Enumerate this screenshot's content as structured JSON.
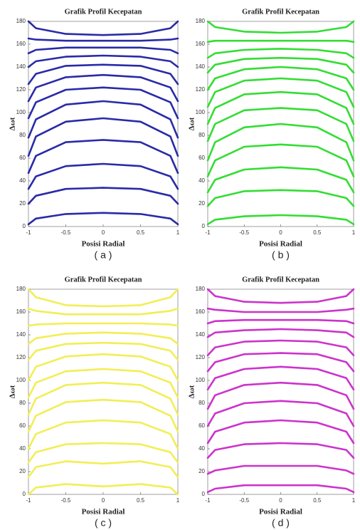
{
  "chart_data": [
    {
      "type": "line",
      "title": "Grafik Profil Kecepatan",
      "xlabel": "Posisi Radial",
      "ylabel": "Δωt",
      "caption": "( a )",
      "x": [
        -1,
        -0.9,
        -0.5,
        0,
        0.5,
        0.9,
        1
      ],
      "xlim": [
        -1,
        1
      ],
      "ylim": [
        0,
        180
      ],
      "xticks": [
        -1,
        -0.5,
        0,
        0.5,
        1
      ],
      "yticks": [
        0,
        20,
        40,
        60,
        80,
        100,
        120,
        140,
        160,
        180
      ],
      "series": [
        {
          "color": "#2a2aa8",
          "values": [
            2,
            7,
            11,
            12,
            11,
            7,
            2
          ]
        },
        {
          "color": "#2a2aa8",
          "values": [
            20,
            27,
            33,
            34,
            33,
            27,
            20
          ]
        },
        {
          "color": "#2a2aa8",
          "values": [
            33,
            44,
            53,
            55,
            53,
            44,
            33
          ]
        },
        {
          "color": "#2a2aa8",
          "values": [
            47,
            62,
            74,
            76,
            74,
            62,
            47
          ]
        },
        {
          "color": "#2a2aa8",
          "values": [
            62,
            79,
            92,
            95,
            92,
            79,
            62
          ]
        },
        {
          "color": "#2a2aa8",
          "values": [
            78,
            94,
            107,
            110,
            107,
            94,
            78
          ]
        },
        {
          "color": "#2a2aa8",
          "values": [
            95,
            109,
            120,
            122,
            120,
            109,
            95
          ]
        },
        {
          "color": "#2a2aa8",
          "values": [
            110,
            122,
            131,
            133,
            131,
            122,
            110
          ]
        },
        {
          "color": "#2a2aa8",
          "values": [
            125,
            134,
            141,
            142,
            141,
            134,
            125
          ]
        },
        {
          "color": "#2a2aa8",
          "values": [
            140,
            145,
            149,
            150,
            149,
            145,
            140
          ]
        },
        {
          "color": "#2a2aa8",
          "values": [
            152,
            155,
            157,
            157,
            157,
            155,
            152
          ]
        },
        {
          "color": "#2a2aa8",
          "values": [
            165,
            164,
            163,
            163,
            163,
            164,
            165
          ]
        },
        {
          "color": "#2a2aa8",
          "values": [
            180,
            174,
            169,
            168,
            169,
            174,
            180
          ]
        }
      ]
    },
    {
      "type": "line",
      "title": "Grafik Profil Kecepatan",
      "xlabel": "Posisi Radial",
      "ylabel": "Δωt",
      "caption": "( b )",
      "x": [
        -1,
        -0.9,
        -0.5,
        0,
        0.5,
        0.9,
        1
      ],
      "xlim": [
        -1,
        1
      ],
      "ylim": [
        0,
        180
      ],
      "xticks": [
        -1,
        -0.5,
        0,
        0.5,
        1
      ],
      "yticks": [
        0,
        20,
        40,
        60,
        80,
        100,
        120,
        140,
        160,
        180
      ],
      "series": [
        {
          "color": "#33dd33",
          "values": [
            2,
            6,
            9,
            10,
            9,
            6,
            2
          ]
        },
        {
          "color": "#33dd33",
          "values": [
            18,
            25,
            31,
            32,
            31,
            25,
            18
          ]
        },
        {
          "color": "#33dd33",
          "values": [
            30,
            41,
            50,
            52,
            50,
            41,
            30
          ]
        },
        {
          "color": "#33dd33",
          "values": [
            44,
            58,
            70,
            72,
            70,
            58,
            44
          ]
        },
        {
          "color": "#33dd33",
          "values": [
            58,
            74,
            87,
            90,
            87,
            74,
            58
          ]
        },
        {
          "color": "#33dd33",
          "values": [
            75,
            90,
            102,
            104,
            102,
            90,
            75
          ]
        },
        {
          "color": "#33dd33",
          "values": [
            90,
            104,
            116,
            118,
            116,
            104,
            90
          ]
        },
        {
          "color": "#33dd33",
          "values": [
            105,
            118,
            128,
            130,
            128,
            118,
            105
          ]
        },
        {
          "color": "#33dd33",
          "values": [
            120,
            130,
            138,
            140,
            138,
            130,
            120
          ]
        },
        {
          "color": "#33dd33",
          "values": [
            135,
            142,
            147,
            148,
            147,
            142,
            135
          ]
        },
        {
          "color": "#33dd33",
          "values": [
            148,
            152,
            155,
            156,
            155,
            152,
            148
          ]
        },
        {
          "color": "#33dd33",
          "values": [
            162,
            163,
            163,
            163,
            163,
            163,
            162
          ]
        },
        {
          "color": "#33dd33",
          "values": [
            180,
            175,
            171,
            170,
            171,
            175,
            180
          ]
        }
      ]
    },
    {
      "type": "line",
      "title": "Grafik Profil Kecepatan",
      "xlabel": "Posisi Radial",
      "ylabel": "Δωt",
      "caption": "( c )",
      "x": [
        -1,
        -0.9,
        -0.5,
        0,
        0.5,
        0.9,
        1
      ],
      "xlim": [
        -1,
        1
      ],
      "ylim": [
        0,
        180
      ],
      "xticks": [
        -1,
        -0.5,
        0,
        0.5,
        1
      ],
      "yticks": [
        0,
        20,
        40,
        60,
        80,
        100,
        120,
        140,
        160,
        180
      ],
      "series": [
        {
          "color": "#f2ee55",
          "values": [
            0,
            6,
            9,
            7,
            9,
            6,
            0
          ]
        },
        {
          "color": "#f2ee55",
          "values": [
            15,
            24,
            29,
            27,
            29,
            24,
            15
          ]
        },
        {
          "color": "#f2ee55",
          "values": [
            28,
            37,
            44,
            45,
            44,
            37,
            28
          ]
        },
        {
          "color": "#f2ee55",
          "values": [
            40,
            53,
            63,
            65,
            63,
            53,
            40
          ]
        },
        {
          "color": "#f2ee55",
          "values": [
            55,
            69,
            81,
            83,
            81,
            69,
            55
          ]
        },
        {
          "color": "#f2ee55",
          "values": [
            70,
            84,
            96,
            98,
            96,
            84,
            70
          ]
        },
        {
          "color": "#f2ee55",
          "values": [
            85,
            98,
            108,
            110,
            108,
            98,
            85
          ]
        },
        {
          "color": "#f2ee55",
          "values": [
            100,
            112,
            121,
            123,
            121,
            112,
            100
          ]
        },
        {
          "color": "#f2ee55",
          "values": [
            118,
            126,
            132,
            133,
            132,
            126,
            118
          ]
        },
        {
          "color": "#f2ee55",
          "values": [
            132,
            137,
            141,
            142,
            141,
            137,
            132
          ]
        },
        {
          "color": "#f2ee55",
          "values": [
            148,
            149,
            150,
            150,
            150,
            149,
            148
          ]
        },
        {
          "color": "#f2ee55",
          "values": [
            163,
            161,
            158,
            158,
            158,
            161,
            163
          ]
        },
        {
          "color": "#f2ee55",
          "values": [
            180,
            173,
            166,
            165,
            166,
            173,
            180
          ]
        }
      ]
    },
    {
      "type": "line",
      "title": "Grafik Profil Kecepatan",
      "xlabel": "Posisi Radial",
      "ylabel": "Δωt",
      "caption": "( d )",
      "x": [
        -1,
        -0.9,
        -0.5,
        0,
        0.5,
        0.9,
        1
      ],
      "xlim": [
        -1,
        1
      ],
      "ylim": [
        0,
        180
      ],
      "xticks": [
        -1,
        -0.5,
        0,
        0.5,
        1
      ],
      "yticks": [
        0,
        20,
        40,
        60,
        80,
        100,
        120,
        140,
        160,
        180
      ],
      "series": [
        {
          "color": "#cc33cc",
          "values": [
            2,
            5,
            8,
            8,
            8,
            5,
            2
          ]
        },
        {
          "color": "#cc33cc",
          "values": [
            18,
            21,
            25,
            25,
            25,
            21,
            18
          ]
        },
        {
          "color": "#cc33cc",
          "values": [
            32,
            39,
            44,
            45,
            44,
            39,
            32
          ]
        },
        {
          "color": "#cc33cc",
          "values": [
            45,
            55,
            63,
            65,
            63,
            55,
            45
          ]
        },
        {
          "color": "#cc33cc",
          "values": [
            60,
            71,
            80,
            82,
            80,
            71,
            60
          ]
        },
        {
          "color": "#cc33cc",
          "values": [
            75,
            87,
            96,
            98,
            96,
            87,
            75
          ]
        },
        {
          "color": "#cc33cc",
          "values": [
            92,
            102,
            110,
            112,
            110,
            102,
            92
          ]
        },
        {
          "color": "#cc33cc",
          "values": [
            108,
            116,
            123,
            124,
            123,
            116,
            108
          ]
        },
        {
          "color": "#cc33cc",
          "values": [
            122,
            129,
            134,
            135,
            134,
            129,
            122
          ]
        },
        {
          "color": "#cc33cc",
          "values": [
            138,
            142,
            144,
            145,
            144,
            142,
            138
          ]
        },
        {
          "color": "#cc33cc",
          "values": [
            150,
            152,
            153,
            153,
            153,
            152,
            150
          ]
        },
        {
          "color": "#cc33cc",
          "values": [
            163,
            162,
            160,
            160,
            160,
            162,
            163
          ]
        },
        {
          "color": "#cc33cc",
          "values": [
            180,
            174,
            169,
            168,
            169,
            174,
            180
          ]
        }
      ]
    }
  ]
}
